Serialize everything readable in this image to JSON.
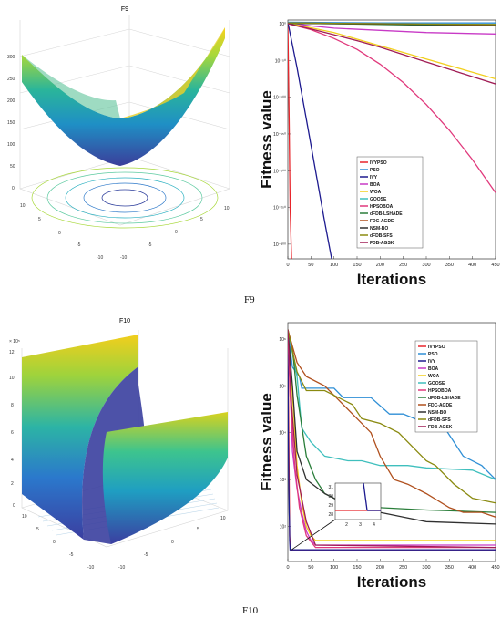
{
  "captions": {
    "f9": "F9",
    "f10": "F10"
  },
  "surface_f9": {
    "title": "F9",
    "z_ticks": [
      "300",
      "250",
      "200",
      "150",
      "100",
      "50",
      "0"
    ],
    "x_ticks": [
      "10",
      "5",
      "0",
      "-5",
      "-10"
    ],
    "y_ticks": [
      "-10",
      "-5",
      "0",
      "5",
      "10"
    ]
  },
  "surface_f10": {
    "title": "F10",
    "exponent": "× 10⁵",
    "z_ticks": [
      "12",
      "10",
      "8",
      "6",
      "4",
      "2",
      "0"
    ],
    "x_ticks": [
      "10",
      "5",
      "0",
      "-5",
      "-10"
    ],
    "y_ticks": [
      "-10",
      "-5",
      "0",
      "5",
      "10"
    ]
  },
  "chart_data": [
    {
      "type": "line",
      "title": "",
      "xlabel": "Iterations",
      "ylabel": "Fitness value",
      "y_scale": "log",
      "xlim": [
        0,
        450
      ],
      "x_ticks": [
        0,
        50,
        100,
        150,
        200,
        250,
        300,
        350,
        400,
        450
      ],
      "y_tick_labels": [
        "10⁰",
        "10⁻⁵⁰",
        "10⁻¹⁰⁰",
        "10⁻¹⁵⁰",
        "10⁻²⁰⁰",
        "10⁻²⁵⁰",
        "10⁻³⁰⁰"
      ],
      "y_tick_exponents": [
        0,
        -50,
        -100,
        -150,
        -200,
        -250,
        -300
      ],
      "ylim_exp": [
        -320,
        5
      ],
      "legend_position": "center-right",
      "series": [
        {
          "name": "IVYPSO",
          "color": "#e8242a",
          "x": [
            0,
            3,
            5,
            8
          ],
          "y_exp": [
            2,
            -140,
            -250,
            -320
          ]
        },
        {
          "name": "PSO",
          "color": "#2f8fd6",
          "x": [
            0,
            100,
            200,
            300,
            400,
            450
          ],
          "y_exp": [
            2,
            1.5,
            1.2,
            1,
            1,
            1
          ]
        },
        {
          "name": "IVY",
          "color": "#1d1a8f",
          "x": [
            0,
            20,
            40,
            60,
            80,
            95
          ],
          "y_exp": [
            2,
            -60,
            -130,
            -200,
            -270,
            -320
          ]
        },
        {
          "name": "BOA",
          "color": "#c83ac6",
          "x": [
            0,
            50,
            100,
            200,
            300,
            450
          ],
          "y_exp": [
            1,
            -3,
            -6,
            -9,
            -12,
            -14
          ]
        },
        {
          "name": "WOA",
          "color": "#f2cf1e",
          "x": [
            0,
            100,
            200,
            300,
            400,
            450
          ],
          "y_exp": [
            1,
            -12,
            -30,
            -48,
            -66,
            -75
          ]
        },
        {
          "name": "GOOSE",
          "color": "#3fbfbd",
          "x": [
            0,
            100,
            200,
            300,
            450
          ],
          "y_exp": [
            0.5,
            0,
            -0.5,
            -1,
            -1.5
          ]
        },
        {
          "name": "HPSOBOA",
          "color": "#e0397c",
          "x": [
            0,
            50,
            100,
            150,
            200,
            250,
            300,
            350,
            400,
            450
          ],
          "y_exp": [
            0,
            -8,
            -20,
            -35,
            -55,
            -80,
            -110,
            -145,
            -185,
            -230
          ]
        },
        {
          "name": "dFDB-LSHADE",
          "color": "#2a7e3a",
          "x": [
            0,
            100,
            200,
            300,
            450
          ],
          "y_exp": [
            0.5,
            0,
            -1,
            -2,
            -3
          ]
        },
        {
          "name": "FDC-AGDE",
          "color": "#b0501e",
          "x": [
            0,
            100,
            200,
            300,
            450
          ],
          "y_exp": [
            1,
            0.5,
            0,
            -1,
            -2
          ]
        },
        {
          "name": "NSM-BO",
          "color": "#303030",
          "x": [
            0,
            100,
            200,
            300,
            450
          ],
          "y_exp": [
            0.5,
            0,
            -0.5,
            -1,
            -1.5
          ]
        },
        {
          "name": "dFDB-SFS",
          "color": "#8a8a10",
          "x": [
            0,
            100,
            200,
            300,
            450
          ],
          "y_exp": [
            1,
            0.5,
            0,
            -0.5,
            -1
          ]
        },
        {
          "name": "FDB-AGSK",
          "color": "#a01d55",
          "x": [
            0,
            50,
            100,
            150,
            200,
            250,
            300,
            350,
            400,
            450
          ],
          "y_exp": [
            0,
            -7,
            -15,
            -23,
            -32,
            -42,
            -52,
            -62,
            -72,
            -82
          ]
        }
      ]
    },
    {
      "type": "line",
      "title": "",
      "xlabel": "Iterations",
      "ylabel": "Fitness value",
      "y_scale": "log",
      "xlim": [
        0,
        450
      ],
      "x_ticks": [
        0,
        50,
        100,
        150,
        200,
        250,
        300,
        350,
        400,
        450
      ],
      "y_tick_labels": [
        "10⁶",
        "10⁵",
        "10⁴",
        "10³",
        "10²"
      ],
      "y_tick_exponents": [
        6,
        5,
        4,
        3,
        2
      ],
      "ylim_exp": [
        1.25,
        6.35
      ],
      "legend_position": "top-right",
      "series": [
        {
          "name": "IVYPSO",
          "color": "#e8242a",
          "x": [
            0,
            2,
            4,
            6,
            450
          ],
          "y_exp": [
            6.2,
            4,
            1.8,
            1.5,
            1.5
          ]
        },
        {
          "name": "PSO",
          "color": "#2f8fd6",
          "x": [
            0,
            10,
            25,
            30,
            100,
            120,
            180,
            220,
            250,
            300,
            340,
            380,
            420,
            450
          ],
          "y_exp": [
            6.2,
            5.4,
            5.2,
            4.95,
            4.95,
            4.75,
            4.75,
            4.4,
            4.4,
            4.2,
            4.1,
            3.5,
            3.3,
            3.0
          ]
        },
        {
          "name": "IVY",
          "color": "#1d1a8f",
          "x": [
            0,
            1,
            2,
            3,
            3.5,
            4,
            5,
            6,
            450
          ],
          "y_exp": [
            6.1,
            4,
            3,
            2.3,
            2.1,
            1.7,
            1.5,
            1.5,
            1.5
          ]
        },
        {
          "name": "BOA",
          "color": "#c83ac6",
          "x": [
            0,
            5,
            10,
            20,
            30,
            40,
            50,
            60,
            450
          ],
          "y_exp": [
            6.2,
            5,
            3.6,
            2.8,
            2.3,
            1.9,
            1.7,
            1.6,
            1.6
          ]
        },
        {
          "name": "WOA",
          "color": "#f2cf1e",
          "x": [
            0,
            10,
            20,
            30,
            40,
            50,
            60,
            450
          ],
          "y_exp": [
            6.2,
            4.8,
            3.3,
            2.5,
            2,
            1.8,
            1.7,
            1.7
          ]
        },
        {
          "name": "GOOSE",
          "color": "#3fbfbd",
          "x": [
            0,
            20,
            30,
            50,
            80,
            130,
            160,
            200,
            260,
            300,
            400,
            450
          ],
          "y_exp": [
            6.2,
            5.2,
            4.1,
            3.8,
            3.5,
            3.4,
            3.4,
            3.3,
            3.3,
            3.25,
            3.2,
            3.0
          ]
        },
        {
          "name": "HPSOBOA",
          "color": "#e0397c",
          "x": [
            0,
            5,
            15,
            25,
            40,
            60,
            450
          ],
          "y_exp": [
            6.2,
            4.8,
            3.3,
            2.4,
            1.8,
            1.55,
            1.55
          ]
        },
        {
          "name": "dFDB-LSHADE",
          "color": "#2a7e3a",
          "x": [
            0,
            10,
            20,
            40,
            60,
            80,
            120,
            160,
            200,
            300,
            450
          ],
          "y_exp": [
            6.2,
            5.8,
            4.8,
            3.5,
            3.0,
            2.7,
            2.5,
            2.4,
            2.4,
            2.35,
            2.3
          ]
        },
        {
          "name": "FDC-AGDE",
          "color": "#b0501e",
          "x": [
            0,
            20,
            40,
            80,
            150,
            180,
            200,
            230,
            260,
            300,
            350,
            380,
            420,
            450
          ],
          "y_exp": [
            6.2,
            5.5,
            5.2,
            5.0,
            4.3,
            4.0,
            3.5,
            3.0,
            2.9,
            2.7,
            2.4,
            2.3,
            2.3,
            2.2
          ]
        },
        {
          "name": "NSM-BO",
          "color": "#303030",
          "x": [
            0,
            10,
            20,
            40,
            80,
            120,
            160,
            200,
            250,
            300,
            450
          ],
          "y_exp": [
            6.2,
            5,
            3.6,
            3.0,
            2.7,
            2.5,
            2.4,
            2.3,
            2.2,
            2.1,
            2.05
          ]
        },
        {
          "name": "dFDB-SFS",
          "color": "#8a8a10",
          "x": [
            0,
            20,
            40,
            80,
            140,
            160,
            200,
            240,
            280,
            300,
            320,
            360,
            400,
            450
          ],
          "y_exp": [
            6.2,
            5.3,
            4.9,
            4.9,
            4.6,
            4.3,
            4.2,
            4.0,
            3.6,
            3.4,
            3.3,
            2.9,
            2.6,
            2.5
          ]
        },
        {
          "name": "FDB-AGSK",
          "color": "#a01d55",
          "x": [
            0,
            8,
            20,
            40,
            60,
            450
          ],
          "y_exp": [
            6.2,
            4.6,
            3.1,
            2.1,
            1.6,
            1.55
          ]
        }
      ],
      "inset": {
        "x_ticks": [
          "2",
          "3",
          "4"
        ],
        "y_ticks": [
          "31",
          "30",
          "29",
          "28"
        ]
      }
    }
  ]
}
